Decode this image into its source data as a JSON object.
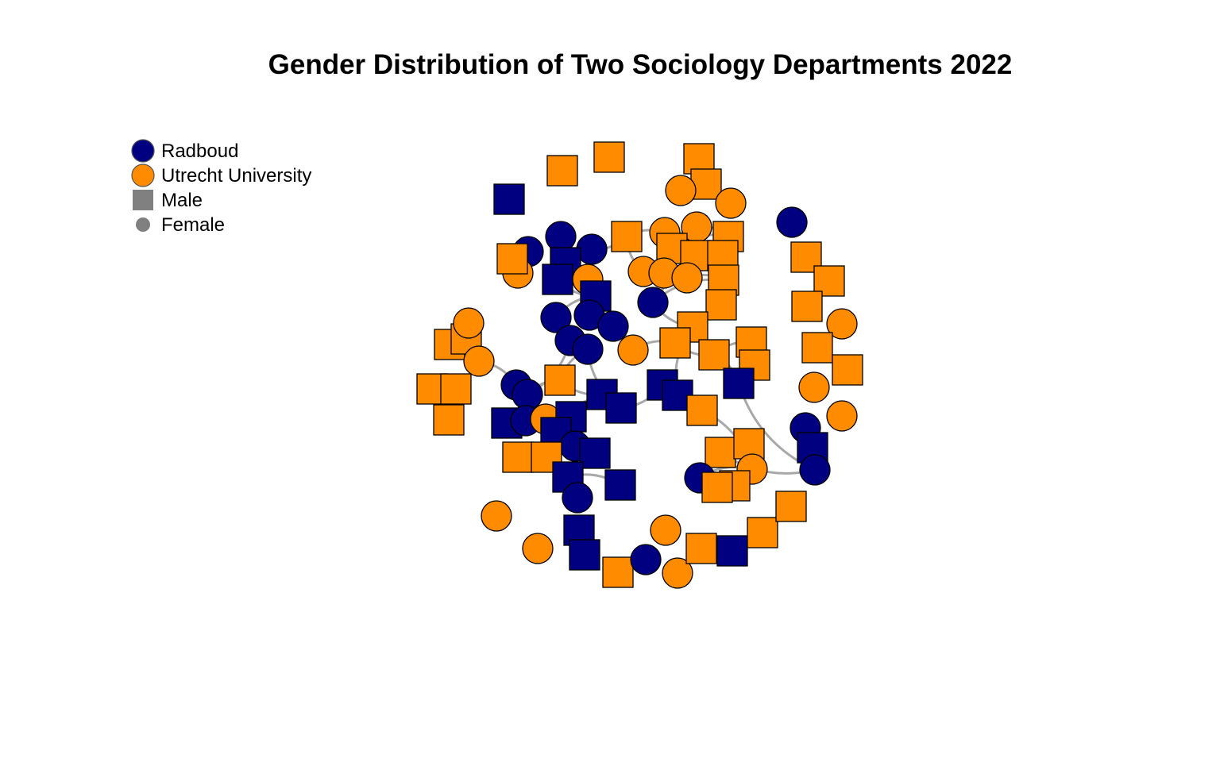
{
  "title": "Gender Distribution of Two Sociology Departments 2022",
  "colors": {
    "radboud": "#000080",
    "utrecht": "#FF8C00",
    "neutral": "#808080",
    "edge": "#A8A8A8"
  },
  "legend": [
    {
      "label": "Radboud",
      "shape": "circle",
      "color_key": "radboud",
      "size": "large"
    },
    {
      "label": "Utrecht University",
      "shape": "circle",
      "color_key": "utrecht",
      "size": "large"
    },
    {
      "label": "Male",
      "shape": "square",
      "color_key": "neutral",
      "size": "large"
    },
    {
      "label": "Female",
      "shape": "circle",
      "color_key": "neutral",
      "size": "small"
    }
  ]
}
